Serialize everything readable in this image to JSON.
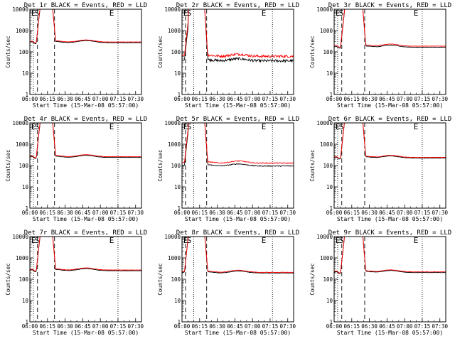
{
  "chart_data": [
    {
      "type": "line",
      "title": "Det 1r BLACK = Events, RED = LLD",
      "red_level": 290,
      "black_level": 270,
      "noise": "low"
    },
    {
      "type": "line",
      "title": "Det 2r BLACK = Events, RED = LLD",
      "red_level": 62,
      "black_level": 38,
      "noise": "high"
    },
    {
      "type": "line",
      "title": "Det 3r BLACK = Events, RED = LLD",
      "red_level": 185,
      "black_level": 165,
      "noise": "low"
    },
    {
      "type": "line",
      "title": "Det 4r BLACK = Events, RED = LLD",
      "red_level": 260,
      "black_level": 240,
      "noise": "low"
    },
    {
      "type": "line",
      "title": "Det 5r BLACK = Events, RED = LLD",
      "red_level": 130,
      "black_level": 95,
      "noise": "medium"
    },
    {
      "type": "line",
      "title": "Det 6r BLACK = Events, RED = LLD",
      "red_level": 240,
      "black_level": 225,
      "noise": "low"
    },
    {
      "type": "line",
      "title": "Det 7r BLACK = Events, RED = LLD",
      "red_level": 270,
      "black_level": 250,
      "noise": "low"
    },
    {
      "type": "line",
      "title": "Det 8r BLACK = Events, RED = LLD",
      "red_level": 210,
      "black_level": 195,
      "noise": "low"
    },
    {
      "type": "line",
      "title": "Det 9r BLACK = Events, RED = LLD",
      "red_level": 220,
      "black_level": 205,
      "noise": "low"
    }
  ],
  "shared": {
    "xlabel": "Start Time (15-Mar-08 05:57:00)",
    "ylabel": "Counts/sec",
    "x_range": [
      "06:00",
      "07:35"
    ],
    "y_range": [
      1,
      10000
    ],
    "y_scale": "log",
    "x_ticks": [
      "06:00",
      "06:15",
      "06:30",
      "06:45",
      "07:00",
      "07:15",
      "07:30"
    ],
    "y_ticks": [
      "1",
      "10",
      "100",
      "1000",
      "10000"
    ],
    "markers": [
      "E",
      "S",
      "E"
    ],
    "colors": {
      "events": "#000000",
      "lld": "#ff0000"
    }
  }
}
